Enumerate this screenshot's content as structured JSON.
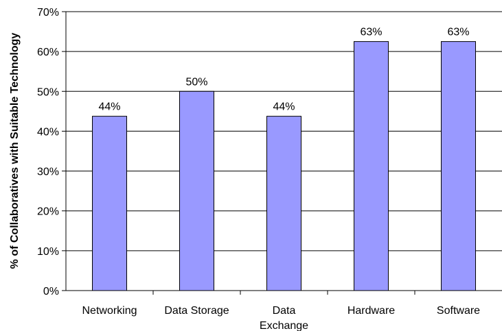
{
  "chart_data": {
    "type": "bar",
    "title": "",
    "xlabel": "",
    "ylabel": "% of Collaboratives with Suitable Technology",
    "categories": [
      [
        "Networking"
      ],
      [
        "Data Storage"
      ],
      [
        "Data",
        "Exchange"
      ],
      [
        "Hardware"
      ],
      [
        "Software"
      ]
    ],
    "values": [
      43.75,
      50,
      43.75,
      62.5,
      62.5
    ],
    "data_labels": [
      "44%",
      "50%",
      "44%",
      "63%",
      "63%"
    ],
    "ylim": [
      0,
      70
    ],
    "yticks": [
      0,
      10,
      20,
      30,
      40,
      50,
      60,
      70
    ],
    "ytick_labels": [
      "0%",
      "10%",
      "20%",
      "30%",
      "40%",
      "50%",
      "60%",
      "70%"
    ],
    "grid": true,
    "legend": "none",
    "bar_color": "#9999ff",
    "bar_edge_color": "#000000"
  }
}
